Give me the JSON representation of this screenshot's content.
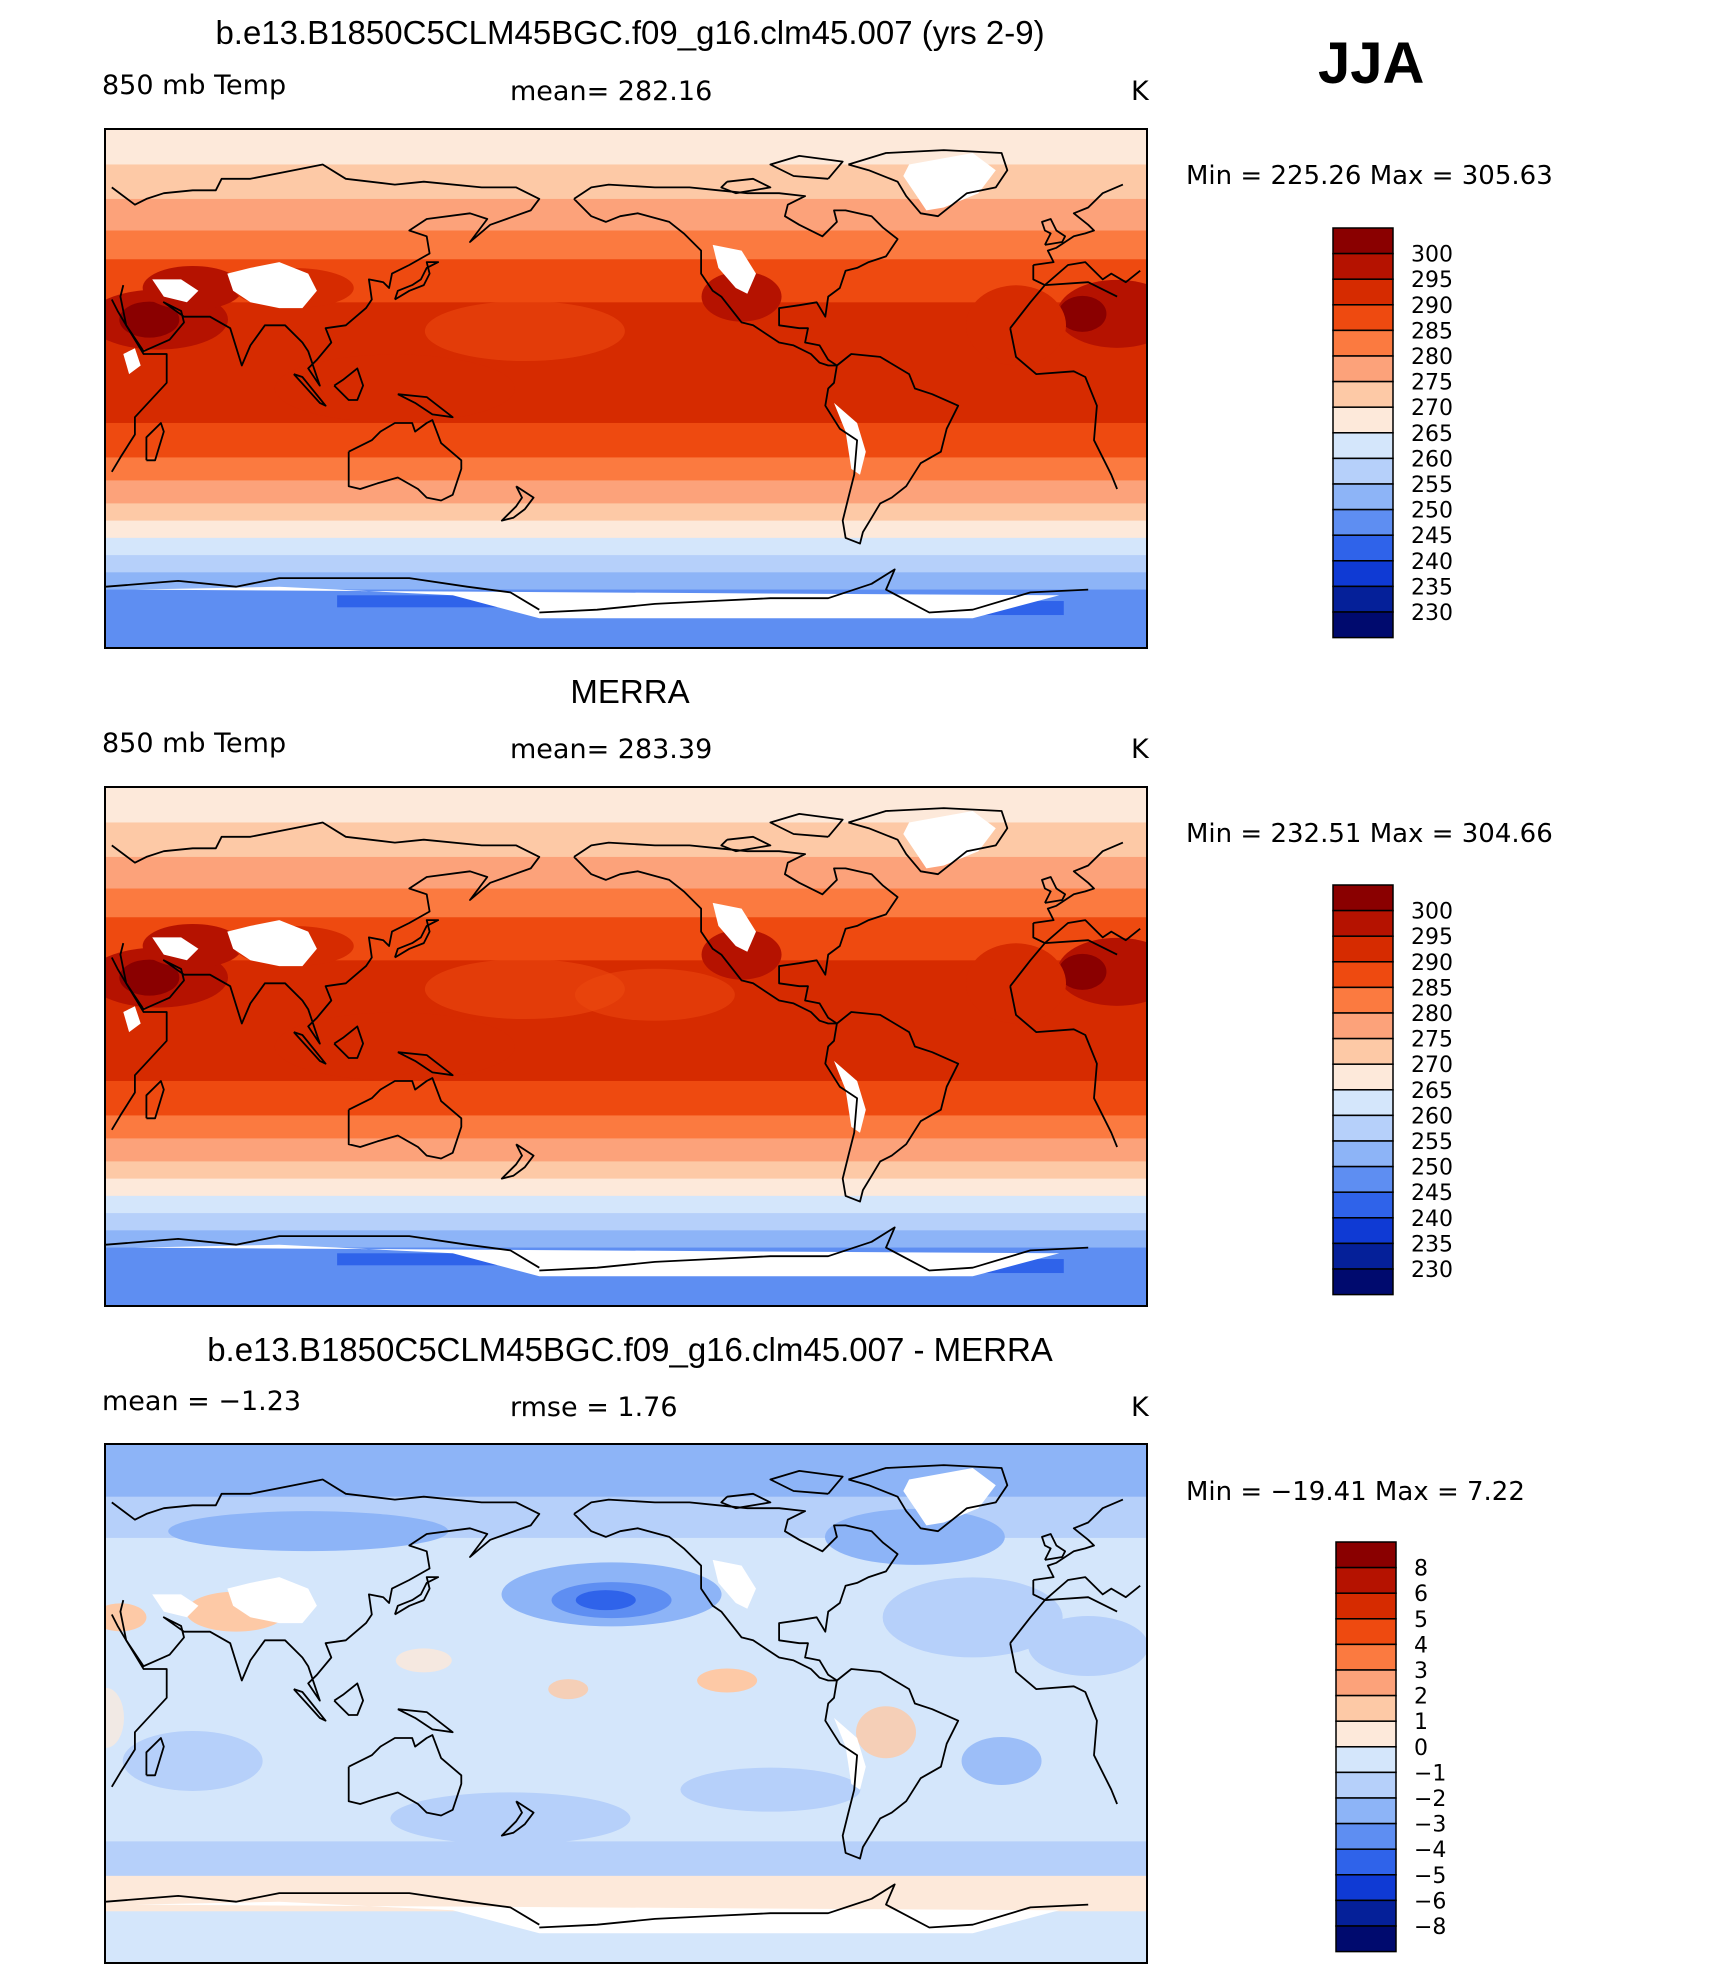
{
  "season": "JJA",
  "colorbars": {
    "temp": {
      "labels": [
        "300",
        "295",
        "290",
        "285",
        "280",
        "275",
        "270",
        "265",
        "260",
        "255",
        "250",
        "245",
        "240",
        "235",
        "230"
      ],
      "colors": [
        "#8a0000",
        "#b51200",
        "#d62b00",
        "#ee4a10",
        "#fb7a40",
        "#fca27a",
        "#fdc9a6",
        "#fde9da",
        "#d4e6fb",
        "#b6d0fa",
        "#8db4f7",
        "#5e8ef2",
        "#2f63ea",
        "#0f3ad4",
        "#052099",
        "#000a6e"
      ]
    },
    "diff": {
      "labels": [
        "8",
        "6",
        "5",
        "4",
        "3",
        "2",
        "1",
        "0",
        "−1",
        "−2",
        "−3",
        "−4",
        "−5",
        "−6",
        "−8"
      ],
      "colors": [
        "#8a0000",
        "#b51200",
        "#d62b00",
        "#ee4a10",
        "#fb7a40",
        "#fca27a",
        "#fdc9a6",
        "#fde9da",
        "#d4e6fb",
        "#b6d0fa",
        "#8db4f7",
        "#5e8ef2",
        "#2f63ea",
        "#0f3ad4",
        "#052099",
        "#000a6e"
      ]
    }
  },
  "panels": [
    {
      "title": "b.e13.B1850C5CLM45BGC.f09_g16.clm45.007 (yrs 2-9)",
      "left_label": "850 mb Temp",
      "center_label": "mean= 282.16",
      "units": "K",
      "minmax": "Min  =  225.26  Max  =  305.63",
      "colorbar": "temp",
      "field": "model"
    },
    {
      "title": "MERRA",
      "left_label": "850 mb Temp",
      "center_label": "mean= 283.39",
      "units": "K",
      "minmax": "Min  =  232.51  Max  =  304.66",
      "colorbar": "temp",
      "field": "obs"
    },
    {
      "title": "b.e13.B1850C5CLM45BGC.f09_g16.clm45.007 - MERRA",
      "left_label": "mean  =    −1.23",
      "center_label": "rmse  =     1.76",
      "units": "K",
      "minmax": "Min  =  −19.41  Max  =     7.22",
      "colorbar": "diff",
      "field": "diff"
    }
  ]
}
